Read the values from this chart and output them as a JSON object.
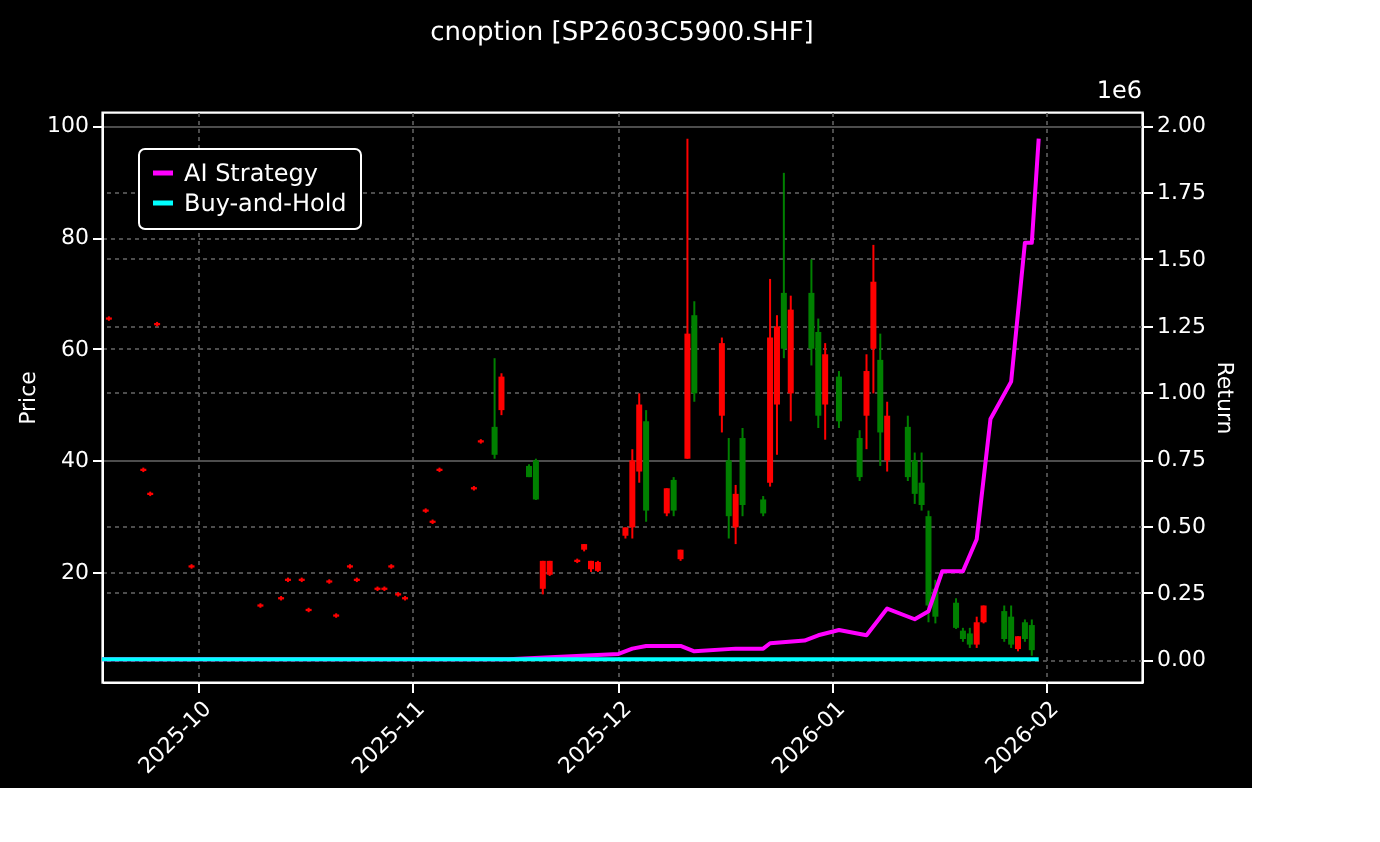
{
  "chart_data": {
    "type": "candlestick",
    "title": "cnoption [SP2603C5900.SHF]",
    "ylabel": "Price",
    "y2label": "Return",
    "x": [
      "2025-09-18",
      "2025-09-23",
      "2025-09-24",
      "2025-09-25",
      "2025-09-30",
      "2025-10-10",
      "2025-10-13",
      "2025-10-14",
      "2025-10-16",
      "2025-10-17",
      "2025-10-20",
      "2025-10-21",
      "2025-10-23",
      "2025-10-24",
      "2025-10-27",
      "2025-10-28",
      "2025-10-29",
      "2025-10-30",
      "2025-10-31",
      "2025-11-03",
      "2025-11-04",
      "2025-11-05",
      "2025-11-10",
      "2025-11-11",
      "2025-11-13",
      "2025-11-14",
      "2025-11-18",
      "2025-11-19",
      "2025-11-20",
      "2025-11-21",
      "2025-11-25",
      "2025-11-26",
      "2025-11-27",
      "2025-11-28",
      "2025-12-02",
      "2025-12-03",
      "2025-12-04",
      "2025-12-05",
      "2025-12-08",
      "2025-12-09",
      "2025-12-10",
      "2025-12-11",
      "2025-12-12",
      "2025-12-16",
      "2025-12-17",
      "2025-12-18",
      "2025-12-19",
      "2025-12-22",
      "2025-12-23",
      "2025-12-24",
      "2025-12-25",
      "2025-12-26",
      "2025-12-29",
      "2025-12-30",
      "2025-12-31",
      "2026-01-02",
      "2026-01-05",
      "2026-01-06",
      "2026-01-07",
      "2026-01-08",
      "2026-01-09",
      "2026-01-12",
      "2026-01-13",
      "2026-01-14",
      "2026-01-15",
      "2026-01-16",
      "2026-01-19",
      "2026-01-20",
      "2026-01-21",
      "2026-01-22",
      "2026-01-23",
      "2026-01-26",
      "2026-01-27",
      "2026-01-28",
      "2026-01-29",
      "2026-01-30"
    ],
    "ohlc": [
      [
        65.6,
        65.8,
        65.0,
        65.2
      ],
      [
        38.5,
        38.7,
        37.9,
        38.1
      ],
      [
        34.2,
        34.4,
        33.6,
        33.8
      ],
      [
        64.6,
        64.8,
        64.0,
        64.2
      ],
      [
        21.2,
        21.4,
        20.6,
        20.8
      ],
      [
        14.2,
        14.4,
        13.6,
        13.8
      ],
      [
        15.5,
        15.7,
        14.9,
        15.1
      ],
      [
        18.8,
        19.0,
        18.2,
        18.4
      ],
      [
        18.8,
        19.0,
        18.2,
        18.4
      ],
      [
        13.4,
        13.6,
        12.8,
        13.0
      ],
      [
        18.5,
        18.7,
        17.9,
        18.1
      ],
      [
        12.4,
        12.6,
        11.8,
        12.0
      ],
      [
        21.2,
        21.4,
        20.6,
        20.8
      ],
      [
        18.8,
        19.0,
        18.2,
        18.4
      ],
      [
        17.2,
        17.4,
        16.6,
        16.8
      ],
      [
        17.2,
        17.4,
        16.6,
        16.8
      ],
      [
        21.2,
        21.4,
        20.6,
        20.8
      ],
      [
        16.2,
        16.4,
        15.6,
        15.8
      ],
      [
        15.5,
        15.7,
        14.9,
        15.1
      ],
      [
        31.2,
        31.4,
        30.6,
        30.8
      ],
      [
        29.2,
        29.4,
        28.6,
        28.8
      ],
      [
        38.5,
        38.7,
        37.9,
        38.1
      ],
      [
        35.2,
        35.4,
        34.6,
        34.8
      ],
      [
        43.6,
        43.8,
        43.0,
        43.2
      ],
      [
        41,
        58.3,
        40.3,
        46
      ],
      [
        55,
        55.6,
        48.1,
        49
      ],
      [
        37,
        39.3,
        37,
        39
      ],
      [
        33,
        40.3,
        32.9,
        40
      ],
      [
        22,
        22,
        16,
        17
      ],
      [
        22,
        22,
        19.3,
        19.5
      ],
      [
        22.2,
        22.4,
        21.6,
        21.8
      ],
      [
        25,
        25,
        23.7,
        24
      ],
      [
        22,
        22,
        20,
        20.5
      ],
      [
        21.8,
        22,
        20,
        20.2
      ],
      [
        28,
        28,
        26,
        26.5
      ],
      [
        40,
        42,
        26,
        28
      ],
      [
        50,
        52,
        36,
        38
      ],
      [
        31,
        49,
        29,
        47
      ],
      [
        35,
        35,
        30,
        30.5
      ],
      [
        31,
        37,
        30,
        36.5
      ],
      [
        24,
        24,
        22,
        22.3
      ],
      [
        62.7,
        97.6,
        40.3,
        40.3
      ],
      [
        52,
        68.5,
        50.5,
        66
      ],
      [
        61,
        62,
        45,
        48
      ],
      [
        30,
        44,
        26,
        40
      ],
      [
        34,
        35.6,
        25,
        28
      ],
      [
        32,
        45.8,
        30,
        44
      ],
      [
        30.5,
        33.6,
        30,
        33
      ],
      [
        62,
        72.5,
        35.3,
        36
      ],
      [
        64,
        66,
        41,
        50
      ],
      [
        60,
        91.5,
        58.3,
        70
      ],
      [
        67,
        69.5,
        47,
        52
      ],
      [
        60,
        76,
        57,
        70
      ],
      [
        48,
        65.4,
        45.8,
        63
      ],
      [
        59,
        61,
        43.7,
        50
      ],
      [
        47,
        56,
        45.8,
        55
      ],
      [
        37,
        45.4,
        36.3,
        44
      ],
      [
        56,
        59,
        42,
        48
      ],
      [
        72,
        78.6,
        52,
        60
      ],
      [
        45,
        62.7,
        39,
        58
      ],
      [
        48,
        50.5,
        38,
        40
      ],
      [
        37,
        48,
        36.3,
        46
      ],
      [
        34,
        41.4,
        32.2,
        40
      ],
      [
        32,
        41.4,
        31,
        36
      ],
      [
        14,
        31,
        11,
        30
      ],
      [
        12,
        18.6,
        10.8,
        17
      ],
      [
        10,
        15.3,
        9.8,
        14.5
      ],
      [
        8,
        10,
        7.5,
        9.5
      ],
      [
        7,
        10,
        6.4,
        9
      ],
      [
        11,
        12,
        6.4,
        7
      ],
      [
        14,
        14,
        10.8,
        11
      ],
      [
        8,
        14,
        7.5,
        13
      ],
      [
        7,
        14,
        6.4,
        12
      ],
      [
        8.5,
        8.5,
        5.8,
        6.2
      ],
      [
        8,
        11.5,
        7.5,
        11
      ],
      [
        6,
        11.5,
        5,
        10.5
      ]
    ],
    "series": [
      {
        "name": "AI Strategy",
        "type": "line",
        "axis": "y2",
        "color": "#ff00ff",
        "x": [
          "2025-09-17",
          "2025-11-15",
          "2025-12-01",
          "2025-12-03",
          "2025-12-05",
          "2025-12-10",
          "2025-12-12",
          "2025-12-18",
          "2025-12-22",
          "2025-12-23",
          "2025-12-28",
          "2025-12-30",
          "2026-01-02",
          "2026-01-06",
          "2026-01-09",
          "2026-01-13",
          "2026-01-15",
          "2026-01-17",
          "2026-01-20",
          "2026-01-22",
          "2026-01-24",
          "2026-01-27",
          "2026-01-29",
          "2026-01-30",
          "2026-01-31"
        ],
        "values": [
          0,
          0,
          0.02,
          0.04,
          0.05,
          0.05,
          0.03,
          0.04,
          0.04,
          0.06,
          0.07,
          0.09,
          0.11,
          0.09,
          0.19,
          0.15,
          0.18,
          0.33,
          0.33,
          0.45,
          0.9,
          1.04,
          1.56,
          1.56,
          1.95
        ]
      },
      {
        "name": "Buy-and-Hold",
        "type": "line",
        "axis": "y2",
        "color": "#00ffff",
        "x": [
          "2025-09-17",
          "2026-01-31"
        ],
        "values": [
          0,
          0
        ]
      }
    ],
    "xlim": [
      "2025-09-17",
      "2026-02-15"
    ],
    "xticks": [
      {
        "value": "2025-10-01",
        "label": "2025-10"
      },
      {
        "value": "2025-11-01",
        "label": "2025-11"
      },
      {
        "value": "2025-12-01",
        "label": "2025-12"
      },
      {
        "value": "2026-01-01",
        "label": "2026-01"
      },
      {
        "value": "2026-02-01",
        "label": "2026-02"
      }
    ],
    "ylim": [
      0.3,
      102.4
    ],
    "yticks": [
      20,
      40,
      60,
      80,
      100
    ],
    "y2lim": [
      -0.085,
      2.05
    ],
    "y2ticks": [
      {
        "value": 0,
        "label": "0.00"
      },
      {
        "value": 0.25,
        "label": "0.25"
      },
      {
        "value": 0.5,
        "label": "0.50"
      },
      {
        "value": 0.75,
        "label": "0.75"
      },
      {
        "value": 1,
        "label": "1.00"
      },
      {
        "value": 1.25,
        "label": "1.25"
      },
      {
        "value": 1.5,
        "label": "1.50"
      },
      {
        "value": 1.75,
        "label": "1.75"
      },
      {
        "value": 2,
        "label": "2.00"
      }
    ],
    "annotations": [
      "1e6"
    ],
    "grid": true,
    "legend": "top left"
  }
}
